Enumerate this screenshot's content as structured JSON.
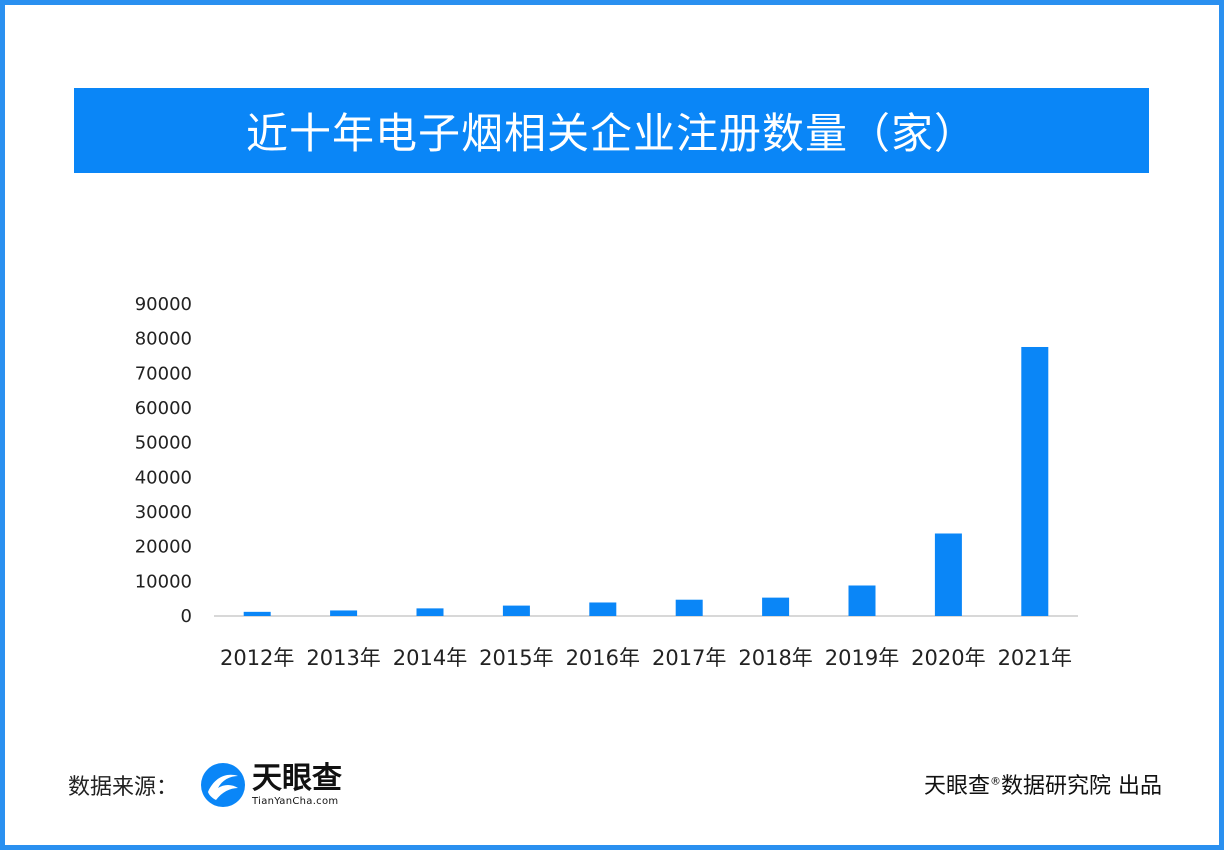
{
  "header": {
    "title": "近十年电子烟相关企业注册数量（家）"
  },
  "footer": {
    "source_label": "数据来源：",
    "logo_name": "天眼查",
    "logo_domain": "TianYanCha.com",
    "credit_brand": "天眼查",
    "credit_mark": "®",
    "credit_text": "数据研究院 出品"
  },
  "colors": {
    "frame": "#2a90f0",
    "banner": "#0a86f7",
    "bar": "#0a86f7",
    "axis": "#cccccc"
  },
  "chart_data": {
    "type": "bar",
    "categories": [
      "2012年",
      "2013年",
      "2014年",
      "2015年",
      "2016年",
      "2017年",
      "2018年",
      "2019年",
      "2020年",
      "2021年"
    ],
    "series": [
      {
        "values": [
          1200,
          1600,
          2200,
          3000,
          3900,
          4700,
          5300,
          8800,
          23800,
          77600
        ]
      }
    ],
    "yticks": [
      0,
      10000,
      20000,
      30000,
      40000,
      50000,
      60000,
      70000,
      80000,
      90000
    ],
    "ylim": [
      0,
      90000
    ],
    "grid": false,
    "legend": "none"
  }
}
